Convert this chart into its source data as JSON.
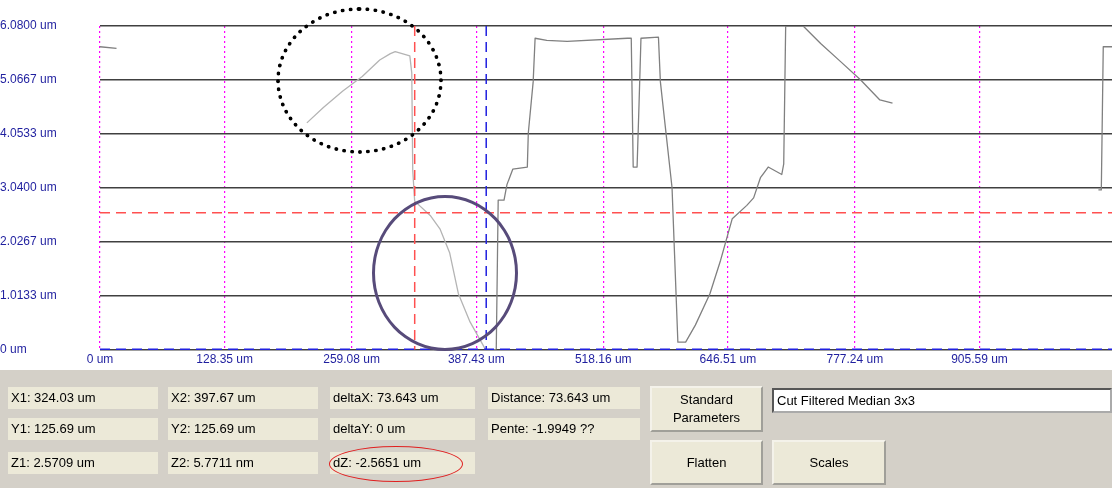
{
  "chart_data": {
    "type": "line",
    "xlim": [
      0,
      1042
    ],
    "ylim": [
      0,
      6.08
    ],
    "xticks": [
      {
        "value": 0,
        "label": "0 um"
      },
      {
        "value": 128.35,
        "label": "128.35 um"
      },
      {
        "value": 259.08,
        "label": "259.08 um"
      },
      {
        "value": 387.43,
        "label": "387.43 um"
      },
      {
        "value": 518.16,
        "label": "518.16 um"
      },
      {
        "value": 646.51,
        "label": "646.51 um"
      },
      {
        "value": 777.24,
        "label": "777.24 um"
      },
      {
        "value": 905.59,
        "label": "905.59 um"
      }
    ],
    "yticks": [
      {
        "value": 0,
        "label": "0 um"
      },
      {
        "value": 1.0133,
        "label": "1.0133 um"
      },
      {
        "value": 2.0267,
        "label": "2.0267 um"
      },
      {
        "value": 3.04,
        "label": "3.0400 um"
      },
      {
        "value": 4.0533,
        "label": "4.0533 um"
      },
      {
        "value": 5.0667,
        "label": "5.0667 um"
      },
      {
        "value": 6.08,
        "label": "6.0800 um"
      }
    ],
    "grid": true,
    "legend": false,
    "marker": "none",
    "line_style": "solid",
    "series": [
      {
        "color": "#808080",
        "x": [
          0,
          17,
          200,
          408,
          410,
          416,
          419,
          425,
          440,
          441,
          446,
          448,
          460,
          481,
          543,
          547,
          549,
          553,
          555,
          557,
          575,
          577,
          582,
          589,
          595,
          603,
          613,
          628,
          639,
          651,
          666,
          673,
          680,
          688,
          702,
          704,
          705,
          706,
          724,
          742,
          762,
          783,
          803,
          816,
          900,
          1028,
          1031,
          1033,
          1042
        ],
        "values": [
          5.69,
          5.66,
          null,
          0,
          2.81,
          2.81,
          3.1,
          3.39,
          3.43,
          4.07,
          5.03,
          5.85,
          5.81,
          5.79,
          5.85,
          5.85,
          3.43,
          3.43,
          4.6,
          5.85,
          5.87,
          5.03,
          4.2,
          3.04,
          0.14,
          0.14,
          0.46,
          1.05,
          1.68,
          2.46,
          2.71,
          2.85,
          3.23,
          3.43,
          3.29,
          3.49,
          4.78,
          6.08,
          6.08,
          5.75,
          5.42,
          5.07,
          4.69,
          4.63,
          null,
          3.0,
          3.0,
          5.69,
          5.69
        ]
      },
      {
        "color": "#b4b4b4",
        "x": [
          213,
          230,
          250,
          270,
          288,
          299,
          304,
          319,
          321,
          322,
          324,
          340,
          350,
          360,
          369,
          381,
          397,
          408
        ],
        "values": [
          4.26,
          4.55,
          4.86,
          5.13,
          5.44,
          5.56,
          5.6,
          5.52,
          5.2,
          3.37,
          2.79,
          2.52,
          2.27,
          1.82,
          1.05,
          0.52,
          0,
          0
        ]
      }
    ],
    "ref_lines": [
      {
        "axis": "x",
        "value": 324.03,
        "color": "#ff5050",
        "line_style": "dashed"
      },
      {
        "axis": "y",
        "value": 2.5709,
        "color": "#ff5050",
        "line_style": "dashed"
      },
      {
        "axis": "x",
        "value": 397.67,
        "color": "#2020e0",
        "line_style": "dashed"
      },
      {
        "axis": "y",
        "value": 0.0057711,
        "color": "#2020e0",
        "line_style": "dashed"
      }
    ],
    "annotations": [
      "X1: 324.03 um",
      "X2: 397.67 um",
      "deltaX: 73.643 um",
      "Distance: 73.643 um",
      "Y1: 125.69 um",
      "Y2: 125.69 um",
      "deltaY: 0 um",
      "Pente: -1.9949 ??",
      "Z1: 2.5709 um",
      "Z2: 5.7711 nm",
      "dZ: -2.5651 um",
      "Standard Parameters",
      "Flatten",
      "Scales",
      "Cut Filtered Median 3x3"
    ]
  }
}
